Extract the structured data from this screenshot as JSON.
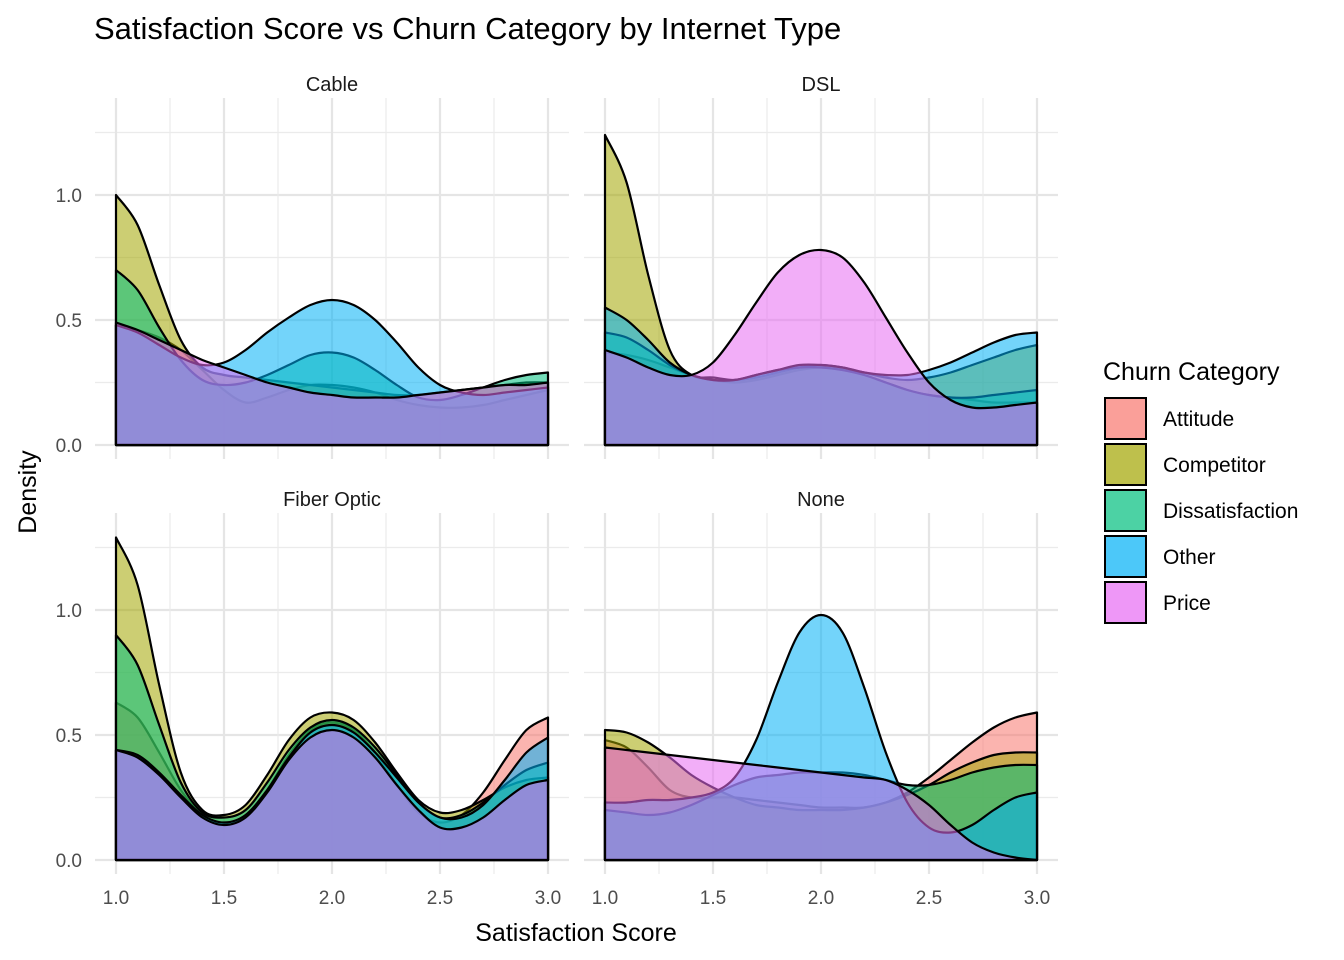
{
  "chart_data": {
    "type": "area",
    "title": "Satisfaction Score vs Churn Category by Internet Type",
    "xlabel": "Satisfaction Score",
    "ylabel": "Density",
    "xlim": [
      1.0,
      3.0
    ],
    "ylim": [
      0.0,
      1.3
    ],
    "x_ticks": [
      "1.0",
      "1.5",
      "2.0",
      "2.5",
      "3.0"
    ],
    "y_ticks": [
      "0.0",
      "0.5",
      "1.0"
    ],
    "grid": true,
    "legend": {
      "title": "Churn Category",
      "position": "right",
      "items": [
        {
          "name": "Attitude",
          "color": "#F8766D"
        },
        {
          "name": "Competitor",
          "color": "#A3A500"
        },
        {
          "name": "Dissatisfaction",
          "color": "#00BF7D"
        },
        {
          "name": "Other",
          "color": "#00B0F6"
        },
        {
          "name": "Price",
          "color": "#E76BF3"
        }
      ]
    },
    "x": [
      1.0,
      1.1,
      1.2,
      1.3,
      1.4,
      1.5,
      1.6,
      1.7,
      1.8,
      1.9,
      2.0,
      2.1,
      2.2,
      2.3,
      2.4,
      2.5,
      2.6,
      2.7,
      2.8,
      2.9,
      3.0
    ],
    "panels": [
      {
        "name": "Cable",
        "series": [
          {
            "name": "Attitude",
            "values": [
              0.48,
              0.46,
              0.43,
              0.38,
              0.3,
              0.22,
              0.17,
              0.19,
              0.22,
              0.24,
              0.24,
              0.23,
              0.21,
              0.18,
              0.16,
              0.15,
              0.15,
              0.16,
              0.18,
              0.2,
              0.22
            ]
          },
          {
            "name": "Competitor",
            "values": [
              1.0,
              0.88,
              0.64,
              0.42,
              0.31,
              0.28,
              0.27,
              0.26,
              0.25,
              0.24,
              0.23,
              0.22,
              0.21,
              0.2,
              0.2,
              0.21,
              0.22,
              0.23,
              0.24,
              0.25,
              0.25
            ]
          },
          {
            "name": "Dissatisfaction",
            "values": [
              0.7,
              0.62,
              0.47,
              0.34,
              0.26,
              0.24,
              0.25,
              0.28,
              0.32,
              0.36,
              0.37,
              0.35,
              0.3,
              0.24,
              0.19,
              0.18,
              0.2,
              0.23,
              0.26,
              0.28,
              0.29
            ]
          },
          {
            "name": "Other",
            "values": [
              0.48,
              0.45,
              0.4,
              0.35,
              0.32,
              0.33,
              0.38,
              0.45,
              0.51,
              0.56,
              0.58,
              0.56,
              0.5,
              0.41,
              0.31,
              0.24,
              0.21,
              0.2,
              0.21,
              0.22,
              0.23
            ]
          },
          {
            "name": "Price",
            "values": [
              0.49,
              0.46,
              0.42,
              0.38,
              0.34,
              0.31,
              0.28,
              0.25,
              0.23,
              0.21,
              0.2,
              0.19,
              0.19,
              0.19,
              0.2,
              0.21,
              0.22,
              0.23,
              0.24,
              0.24,
              0.25
            ]
          }
        ]
      },
      {
        "name": "DSL",
        "series": [
          {
            "name": "Attitude",
            "values": [
              0.37,
              0.36,
              0.34,
              0.31,
              0.28,
              0.26,
              0.25,
              0.26,
              0.28,
              0.3,
              0.31,
              0.3,
              0.28,
              0.25,
              0.22,
              0.2,
              0.19,
              0.18,
              0.17,
              0.17,
              0.17
            ]
          },
          {
            "name": "Competitor",
            "values": [
              1.24,
              1.05,
              0.68,
              0.38,
              0.28,
              0.27,
              0.26,
              0.27,
              0.29,
              0.31,
              0.32,
              0.31,
              0.29,
              0.27,
              0.26,
              0.27,
              0.29,
              0.32,
              0.35,
              0.38,
              0.4
            ]
          },
          {
            "name": "Dissatisfaction",
            "values": [
              0.45,
              0.43,
              0.38,
              0.32,
              0.28,
              0.26,
              0.26,
              0.28,
              0.3,
              0.31,
              0.31,
              0.3,
              0.28,
              0.25,
              0.22,
              0.2,
              0.19,
              0.19,
              0.2,
              0.21,
              0.22
            ]
          },
          {
            "name": "Other",
            "values": [
              0.55,
              0.5,
              0.42,
              0.33,
              0.28,
              0.26,
              0.26,
              0.28,
              0.3,
              0.32,
              0.32,
              0.31,
              0.29,
              0.28,
              0.28,
              0.3,
              0.33,
              0.37,
              0.41,
              0.44,
              0.45
            ]
          },
          {
            "name": "Price",
            "values": [
              0.38,
              0.35,
              0.31,
              0.28,
              0.28,
              0.33,
              0.44,
              0.57,
              0.69,
              0.76,
              0.78,
              0.75,
              0.65,
              0.51,
              0.37,
              0.25,
              0.18,
              0.15,
              0.15,
              0.16,
              0.17
            ]
          }
        ]
      },
      {
        "name": "Fiber Optic",
        "series": [
          {
            "name": "Attitude",
            "values": [
              0.63,
              0.57,
              0.43,
              0.28,
              0.18,
              0.14,
              0.17,
              0.28,
              0.42,
              0.52,
              0.55,
              0.52,
              0.43,
              0.3,
              0.19,
              0.15,
              0.18,
              0.27,
              0.4,
              0.52,
              0.57
            ]
          },
          {
            "name": "Competitor",
            "values": [
              1.29,
              1.1,
              0.7,
              0.35,
              0.2,
              0.18,
              0.22,
              0.34,
              0.48,
              0.57,
              0.59,
              0.56,
              0.47,
              0.35,
              0.24,
              0.19,
              0.2,
              0.24,
              0.29,
              0.32,
              0.33
            ]
          },
          {
            "name": "Dissatisfaction",
            "values": [
              0.9,
              0.78,
              0.54,
              0.31,
              0.19,
              0.17,
              0.2,
              0.31,
              0.44,
              0.53,
              0.56,
              0.53,
              0.45,
              0.34,
              0.23,
              0.17,
              0.18,
              0.23,
              0.3,
              0.36,
              0.39
            ]
          },
          {
            "name": "Other",
            "values": [
              0.44,
              0.42,
              0.35,
              0.26,
              0.18,
              0.15,
              0.18,
              0.28,
              0.41,
              0.51,
              0.54,
              0.51,
              0.43,
              0.33,
              0.23,
              0.17,
              0.17,
              0.22,
              0.32,
              0.43,
              0.49
            ]
          },
          {
            "name": "Price",
            "values": [
              0.44,
              0.41,
              0.34,
              0.25,
              0.17,
              0.14,
              0.17,
              0.27,
              0.4,
              0.49,
              0.52,
              0.49,
              0.41,
              0.3,
              0.2,
              0.13,
              0.13,
              0.17,
              0.24,
              0.3,
              0.32
            ]
          }
        ]
      },
      {
        "name": "None",
        "series": [
          {
            "name": "Attitude",
            "values": [
              0.48,
              0.45,
              0.37,
              0.28,
              0.25,
              0.25,
              0.25,
              0.24,
              0.23,
              0.22,
              0.21,
              0.21,
              0.21,
              0.23,
              0.27,
              0.33,
              0.4,
              0.47,
              0.53,
              0.57,
              0.59
            ]
          },
          {
            "name": "Competitor",
            "values": [
              0.52,
              0.51,
              0.47,
              0.41,
              0.34,
              0.29,
              0.25,
              0.22,
              0.21,
              0.2,
              0.2,
              0.2,
              0.21,
              0.23,
              0.26,
              0.3,
              0.35,
              0.39,
              0.42,
              0.43,
              0.43
            ]
          },
          {
            "name": "Dissatisfaction",
            "values": [
              0.2,
              0.19,
              0.18,
              0.19,
              0.22,
              0.26,
              0.3,
              0.33,
              0.34,
              0.35,
              0.35,
              0.35,
              0.34,
              0.32,
              0.3,
              0.3,
              0.32,
              0.35,
              0.37,
              0.38,
              0.38
            ]
          },
          {
            "name": "Other",
            "values": [
              0.23,
              0.23,
              0.24,
              0.24,
              0.25,
              0.27,
              0.33,
              0.48,
              0.71,
              0.91,
              0.98,
              0.91,
              0.69,
              0.43,
              0.23,
              0.13,
              0.11,
              0.14,
              0.2,
              0.25,
              0.27
            ]
          },
          {
            "name": "Price",
            "values": [
              0.45,
              0.44,
              0.43,
              0.42,
              0.41,
              0.4,
              0.39,
              0.38,
              0.37,
              0.36,
              0.35,
              0.34,
              0.33,
              0.32,
              0.28,
              0.22,
              0.14,
              0.07,
              0.03,
              0.01,
              0.0
            ]
          }
        ]
      }
    ]
  }
}
